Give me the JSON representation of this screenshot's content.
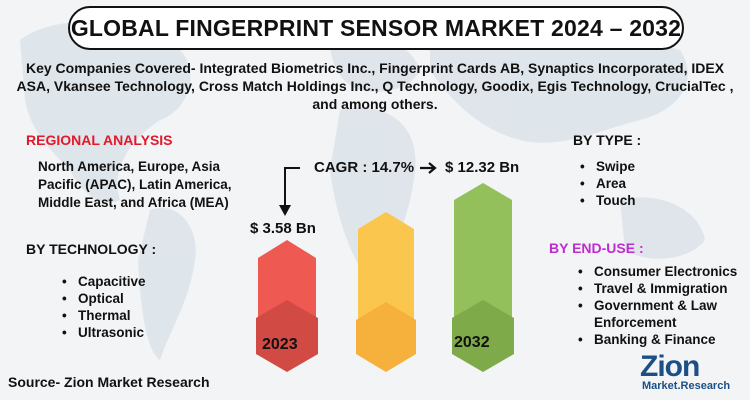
{
  "title": "GLOBAL FINGERPRINT SENSOR MARKET 2024 – 2032",
  "companies": "Key Companies Covered- Integrated Biometrics Inc., Fingerprint Cards AB, Synaptics Incorporated, IDEX ASA, Vkansee Technology, Cross Match Holdings Inc., Q Technology, Goodix, Egis Technology, CrucialTec , and among others.",
  "regional": {
    "heading": "REGIONAL ANALYSIS",
    "text": "North America, Europe, Asia Pacific (APAC), Latin America, Middle East, and Africa (MEA)"
  },
  "technology": {
    "heading": "BY  TECHNOLOGY :",
    "items": [
      "Capacitive",
      "Optical",
      "Thermal",
      "Ultrasonic"
    ]
  },
  "type": {
    "heading": "BY TYPE :",
    "items": [
      "Swipe",
      "Area",
      "Touch"
    ]
  },
  "end_use": {
    "heading": "BY END-USE :",
    "items": [
      "Consumer Electronics",
      "Travel & Immigration",
      "Government & Law Enforcement",
      "Banking & Finance"
    ]
  },
  "market": {
    "cagr": "CAGR : 14.7%",
    "start_value": "$ 3.58 Bn",
    "end_value": "$ 12.32 Bn",
    "start_year": "2023",
    "end_year": "2032"
  },
  "colors": {
    "bar_2023": "#ee5a52",
    "bar_mid": "#fbc64e",
    "bar_2032": "#93c05a",
    "regional_heading": "#e0192b",
    "end_use_heading": "#c02bd1"
  },
  "source": "Source- Zion Market Research",
  "logo": {
    "main": "Zion",
    "sub": "Market.Research"
  }
}
